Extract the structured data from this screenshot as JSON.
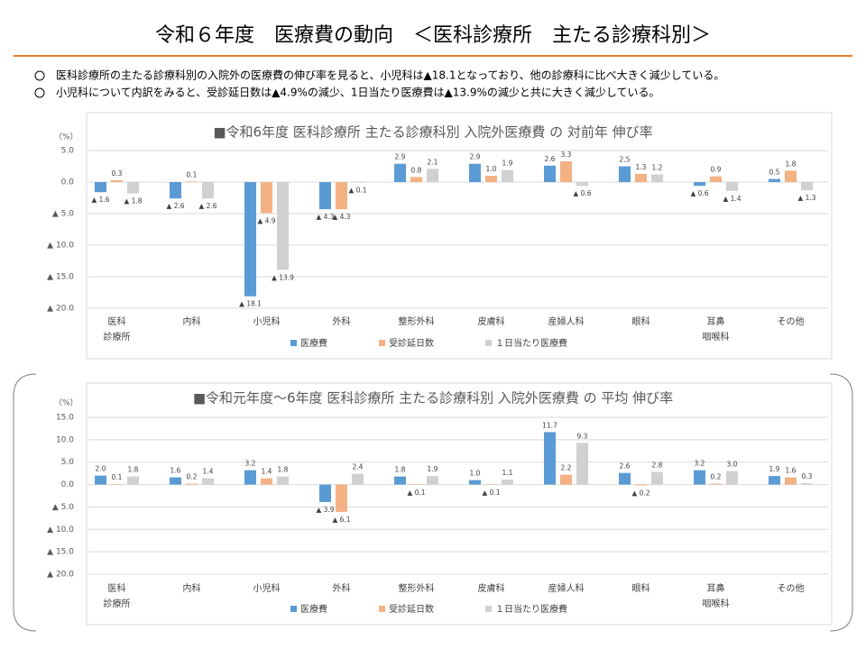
{
  "header": {
    "title": "令和６年度　医療費の動向　＜医科診療所　主たる診療科別＞",
    "bullets": [
      "医科診療所の主たる診療科別の入院外の医療費の伸び率を見ると、小児科は▲18.1となっており、他の診療科に比べ大きく減少している。",
      "小児科について内訳をみると、受診延日数は▲4.9%の減少、1日当たり医療費は▲13.9%の減少と共に大きく減少している。"
    ]
  },
  "chart_data": [
    {
      "type": "bar",
      "title": "■令和6年度 医科診療所 主たる診療科別 入院外医療費 の 対前年 伸び率",
      "y_label": "（%）",
      "categories": [
        "医科\n診療所",
        "内科",
        "小児科",
        "外科",
        "整形外科",
        "皮膚科",
        "産婦人科",
        "眼科",
        "耳鼻\n咽喉科",
        "その他"
      ],
      "ylim": [
        -20,
        5
      ],
      "yticks": [
        {
          "value": 5,
          "label": "5.0"
        },
        {
          "value": 0,
          "label": "0.0"
        },
        {
          "value": -5,
          "label": "▲ 5.0"
        },
        {
          "value": -10,
          "label": "▲ 10.0"
        },
        {
          "value": -15,
          "label": "▲ 15.0"
        },
        {
          "value": -20,
          "label": "▲ 20.0"
        }
      ],
      "grid": true,
      "series": [
        {
          "name": "医療費",
          "color": "#5b9bd5",
          "values": [
            -1.6,
            -2.6,
            -18.1,
            -4.3,
            2.9,
            2.9,
            2.6,
            2.5,
            -0.6,
            0.5
          ],
          "value_labels": [
            "▲ 1.6",
            "▲ 2.6",
            "▲ 18.1",
            "▲ 4.3",
            "2.9",
            "2.9",
            "2.6",
            "2.5",
            "▲ 0.6",
            "0.5"
          ]
        },
        {
          "name": "受診延日数",
          "color": "#f4b183",
          "values": [
            0.3,
            0.1,
            -4.9,
            -4.3,
            0.8,
            1.0,
            3.3,
            1.3,
            0.9,
            1.8
          ],
          "value_labels": [
            "0.3",
            "0.1",
            "▲ 4.9",
            "▲ 4.3",
            "0.8",
            "1.0",
            "3.3",
            "1.3",
            "0.9",
            "1.8"
          ]
        },
        {
          "name": "１日当たり医療費",
          "color": "#d0d0d0",
          "values": [
            -1.8,
            -2.6,
            -13.9,
            -0.1,
            2.1,
            1.9,
            -0.6,
            1.2,
            -1.4,
            -1.3
          ],
          "value_labels": [
            "▲ 1.8",
            "▲ 2.6",
            "▲ 13.9",
            "▲ 0.1",
            "2.1",
            "1.9",
            "▲ 0.6",
            "1.2",
            "▲ 1.4",
            "▲ 1.3"
          ]
        }
      ]
    },
    {
      "type": "bar",
      "title": "■令和元年度～6年度 医科診療所 主たる診療科別 入院外医療費 の 平均 伸び率",
      "y_label": "（%）",
      "categories": [
        "医科\n診療所",
        "内科",
        "小児科",
        "外科",
        "整形外科",
        "皮膚科",
        "産婦人科",
        "眼科",
        "耳鼻\n咽喉科",
        "その他"
      ],
      "ylim": [
        -20,
        15
      ],
      "yticks": [
        {
          "value": 15,
          "label": "15.0"
        },
        {
          "value": 10,
          "label": "10.0"
        },
        {
          "value": 5,
          "label": "5.0"
        },
        {
          "value": 0,
          "label": "0.0"
        },
        {
          "value": -5,
          "label": "▲ 5.0"
        },
        {
          "value": -10,
          "label": "▲ 10.0"
        },
        {
          "value": -15,
          "label": "▲ 15.0"
        },
        {
          "value": -20,
          "label": "▲ 20.0"
        }
      ],
      "grid": true,
      "series": [
        {
          "name": "医療費",
          "color": "#5b9bd5",
          "values": [
            2.0,
            1.6,
            3.2,
            -3.9,
            1.8,
            1.0,
            11.7,
            2.6,
            3.2,
            1.9
          ],
          "value_labels": [
            "2.0",
            "1.6",
            "3.2",
            "▲ 3.9",
            "1.8",
            "1.0",
            "11.7",
            "2.6",
            "3.2",
            "1.9"
          ]
        },
        {
          "name": "受診延日数",
          "color": "#f4b183",
          "values": [
            0.1,
            0.2,
            1.4,
            -6.1,
            -0.1,
            -0.1,
            2.2,
            -0.2,
            0.2,
            1.6
          ],
          "value_labels": [
            "0.1",
            "0.2",
            "1.4",
            "▲ 6.1",
            "▲ 0.1",
            "▲ 0.1",
            "2.2",
            "▲ 0.2",
            "0.2",
            "1.6"
          ]
        },
        {
          "name": "１日当たり医療費",
          "color": "#d0d0d0",
          "values": [
            1.8,
            1.4,
            1.8,
            2.4,
            1.9,
            1.1,
            9.3,
            2.8,
            3.0,
            0.3
          ],
          "value_labels": [
            "1.8",
            "1.4",
            "1.8",
            "2.4",
            "1.9",
            "1.1",
            "9.3",
            "2.8",
            "3.0",
            "0.3"
          ]
        }
      ]
    }
  ]
}
